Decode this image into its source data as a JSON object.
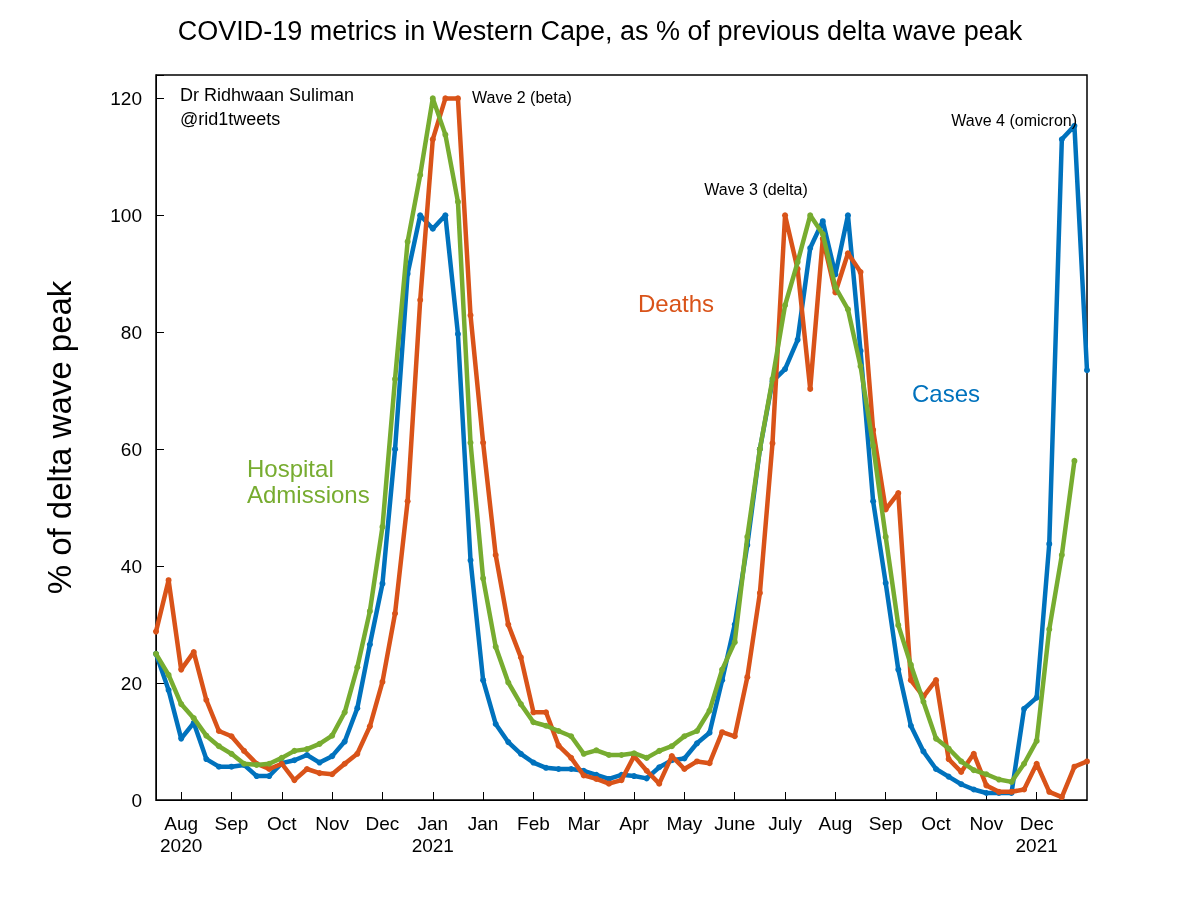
{
  "chart_data": {
    "type": "line",
    "title": "COVID-19 metrics in Western Cape, as % of previous delta wave peak",
    "ylabel": "% of delta wave peak",
    "categories": [
      null,
      null,
      "Aug\n2020",
      null,
      null,
      null,
      "Sep",
      null,
      null,
      null,
      "Oct",
      null,
      null,
      null,
      "Nov",
      null,
      null,
      null,
      "Dec",
      null,
      null,
      null,
      "Jan\n2021",
      null,
      null,
      null,
      "Jan",
      null,
      null,
      null,
      "Feb",
      null,
      null,
      null,
      "Mar",
      null,
      null,
      null,
      "Apr",
      null,
      null,
      null,
      "May",
      null,
      null,
      null,
      "June",
      null,
      null,
      null,
      "July",
      null,
      null,
      null,
      "Aug",
      null,
      null,
      null,
      "Sep",
      null,
      null,
      null,
      "Oct",
      null,
      null,
      null,
      "Nov",
      null,
      null,
      null,
      "Dec\n2021",
      null,
      null,
      null,
      null
    ],
    "ylim": [
      0,
      124
    ],
    "yticks": [
      0,
      20,
      40,
      60,
      80,
      100,
      120
    ],
    "marker": "circle",
    "line_style": "solid",
    "series": [
      {
        "name": "Hospital Admissions",
        "color": "#77ac30",
        "values": [
          25,
          21.4,
          16.4,
          14,
          11,
          9.2,
          7.9,
          6.2,
          6,
          6.2,
          7.2,
          8.4,
          8.7,
          9.6,
          11,
          15,
          22.7,
          32.3,
          46.7,
          72,
          95.5,
          106.9,
          120,
          113.8,
          102.3,
          61.1,
          37.9,
          26.2,
          20.1,
          16.4,
          13.3,
          12.7,
          11.8,
          10.9,
          7.9,
          8.5,
          7.7,
          7.7,
          8,
          7.2,
          8.4,
          9.2,
          10.9,
          11.8,
          15.3,
          22.3,
          27,
          45,
          60,
          72,
          84.6,
          92,
          100,
          96.8,
          87.7,
          83.9,
          74.2,
          60.6,
          45,
          29.9,
          23.1,
          16.8,
          10.5,
          8.8,
          6.6,
          5.1,
          4.4,
          3.5,
          3.1,
          6.2,
          10.1,
          29.2,
          41.9,
          58,
          null
        ]
      },
      {
        "name": "Deaths",
        "color": "#d95319",
        "values": [
          28.8,
          37.6,
          22.3,
          25.3,
          17.1,
          11.8,
          10.9,
          8.4,
          6.2,
          5.3,
          6.2,
          3.4,
          5.3,
          4.6,
          4.4,
          6.2,
          7.9,
          12.6,
          20.2,
          31.9,
          51.1,
          85.5,
          113,
          120,
          120,
          82.9,
          61.1,
          41.9,
          30,
          24.4,
          15,
          15,
          9.3,
          7.2,
          4.2,
          3.6,
          2.8,
          3.4,
          7.5,
          5,
          2.8,
          7.5,
          5.3,
          6.6,
          6.3,
          11.6,
          10.9,
          21,
          35.4,
          61,
          100,
          90.8,
          70.3,
          96,
          86.8,
          93.5,
          90.3,
          63.3,
          49.7,
          52.5,
          20.5,
          17.7,
          20.5,
          7,
          4.8,
          7.9,
          2.5,
          1.4,
          1.4,
          1.8,
          6.2,
          1.4,
          0.5,
          5.7,
          6.6
        ]
      },
      {
        "name": "Cases",
        "color": "#0072bd",
        "values": [
          25,
          18.8,
          10.5,
          13.2,
          7,
          5.7,
          5.7,
          6,
          4.1,
          4.1,
          6.3,
          6.8,
          7.7,
          6.4,
          7.5,
          10,
          15.7,
          26.6,
          37,
          60,
          90,
          100,
          97.7,
          100,
          79.7,
          41,
          20.5,
          13,
          9.9,
          7.9,
          6.4,
          5.5,
          5.3,
          5.3,
          5,
          4.3,
          3.6,
          4.3,
          4.1,
          3.7,
          5.6,
          6.8,
          7.1,
          9.7,
          11.5,
          20.5,
          30,
          43.6,
          60,
          71.6,
          73.7,
          78.7,
          94.4,
          99,
          89.9,
          100,
          76.8,
          51.1,
          37.1,
          22.3,
          12.7,
          8.3,
          5.3,
          4,
          2.7,
          1.8,
          1.2,
          1.2,
          1.2,
          15.6,
          17.5,
          43.8,
          113,
          115.3,
          73.5
        ]
      }
    ],
    "annotations": [
      "Dr Ridhwaan Suliman",
      "@rid1tweets",
      "Wave 2 (beta)",
      "Wave 3 (delta)",
      "Wave 4 (omicron)"
    ]
  }
}
